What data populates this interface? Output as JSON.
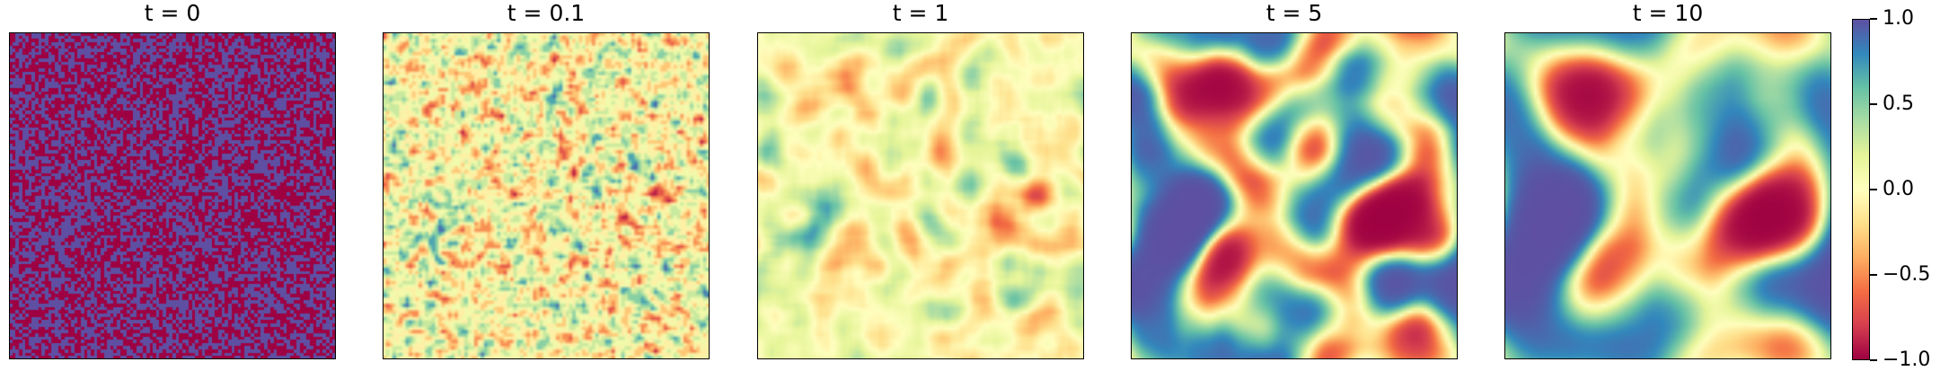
{
  "chart_data": [
    {
      "type": "heatmap",
      "title": "t = 0",
      "colormap": "Spectral",
      "description_values": "binary random field of -1 and 1"
    },
    {
      "type": "heatmap",
      "title": "t = 0.1",
      "colormap": "Spectral",
      "description_values": "fine-grained noisy field near 0"
    },
    {
      "type": "heatmap",
      "title": "t = 1",
      "colormap": "Spectral",
      "description_values": "smooth low-amplitude field near 0"
    },
    {
      "type": "heatmap",
      "title": "t = 5",
      "colormap": "Spectral",
      "description_values": "coarsened domains of -1 and 1 separated by diffuse interfaces"
    },
    {
      "type": "heatmap",
      "title": "t = 10",
      "colormap": "Spectral",
      "description_values": "further coarsened domains of -1 and 1"
    }
  ],
  "colorbar": {
    "vmin": -1.0,
    "vmax": 1.0,
    "ticks": [
      "1.0",
      "0.5",
      "0.0",
      "−0.5",
      "−1.0"
    ],
    "tick_values": [
      1.0,
      0.5,
      0.0,
      -0.5,
      -1.0
    ]
  }
}
